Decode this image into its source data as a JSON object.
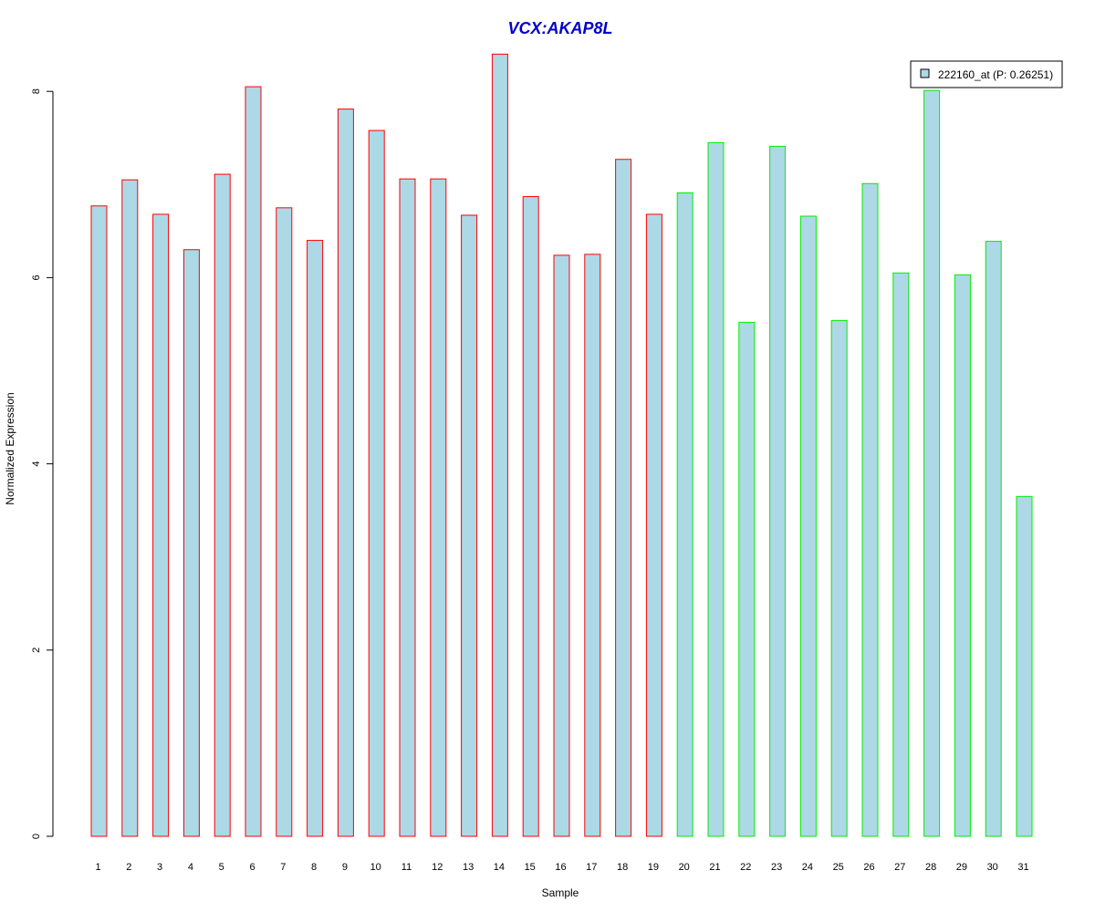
{
  "chart_data": {
    "type": "bar",
    "title": "VCX:AKAP8L",
    "xlabel": "Sample",
    "ylabel": "Normalized Expression",
    "categories": [
      "1",
      "2",
      "3",
      "4",
      "5",
      "6",
      "7",
      "8",
      "9",
      "10",
      "11",
      "12",
      "13",
      "14",
      "15",
      "16",
      "17",
      "18",
      "19",
      "20",
      "21",
      "22",
      "23",
      "24",
      "25",
      "26",
      "27",
      "28",
      "29",
      "30",
      "31"
    ],
    "series": [
      {
        "name": "222160_at (P: 0.26251)",
        "values": [
          6.77,
          7.05,
          6.68,
          6.3,
          7.11,
          8.05,
          6.75,
          6.4,
          7.81,
          7.58,
          7.06,
          7.06,
          6.67,
          8.4,
          6.87,
          6.24,
          6.25,
          7.27,
          6.68,
          6.91,
          7.45,
          5.52,
          7.41,
          6.66,
          5.54,
          7.01,
          6.05,
          8.01,
          6.03,
          6.39,
          3.65
        ]
      }
    ],
    "groups": [
      {
        "range": [
          1,
          19
        ],
        "border_color": "#ff0000"
      },
      {
        "range": [
          20,
          31
        ],
        "border_color": "#00ee00"
      }
    ],
    "yticks": [
      0,
      2,
      4,
      6,
      8
    ],
    "ylim": [
      0,
      8.4
    ],
    "grid": false,
    "legend_position": "top-right",
    "colors": {
      "bar_fill": "#add8e6",
      "title": "#0000cc",
      "legend_border": "#000000"
    }
  }
}
